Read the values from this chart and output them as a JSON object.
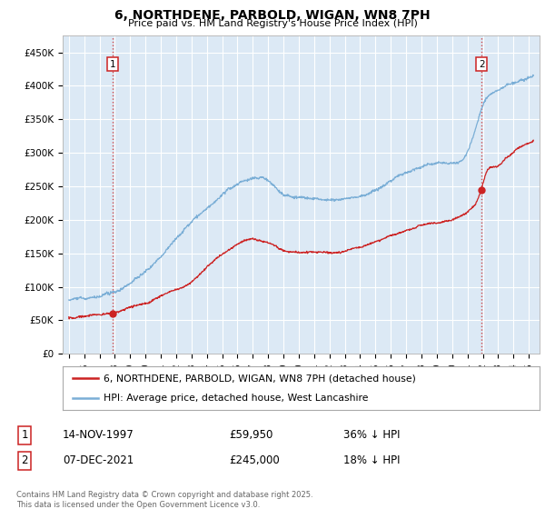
{
  "title": "6, NORTHDENE, PARBOLD, WIGAN, WN8 7PH",
  "subtitle": "Price paid vs. HM Land Registry's House Price Index (HPI)",
  "background_color": "#ffffff",
  "plot_bg_color": "#dce9f5",
  "grid_color": "#ffffff",
  "hpi_color": "#7aaed6",
  "price_color": "#cc2222",
  "sale1_date_num": 1997.875,
  "sale1_price": 59950,
  "sale2_date_num": 2021.92,
  "sale2_price": 245000,
  "legend_line1": "6, NORTHDENE, PARBOLD, WIGAN, WN8 7PH (detached house)",
  "legend_line2": "HPI: Average price, detached house, West Lancashire",
  "table_row1": [
    "1",
    "14-NOV-1997",
    "£59,950",
    "36% ↓ HPI"
  ],
  "table_row2": [
    "2",
    "07-DEC-2021",
    "£245,000",
    "18% ↓ HPI"
  ],
  "footnote": "Contains HM Land Registry data © Crown copyright and database right 2025.\nThis data is licensed under the Open Government Licence v3.0.",
  "ylim_max": 475000,
  "xlim_start": 1994.6,
  "xlim_end": 2025.7
}
